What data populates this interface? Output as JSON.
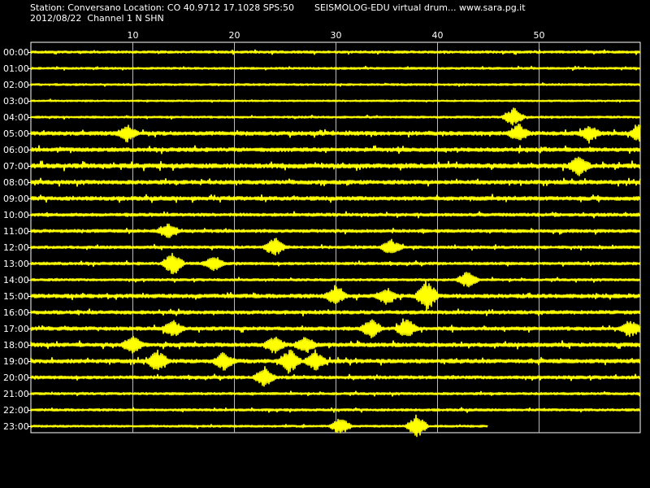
{
  "header": {
    "station_line": "Station: Conversano Location: CO 40.9712 17.1028 SPS:50",
    "title": "SEISMOLOG-EDU virtual drum... www.sara.pg.it",
    "date_line": "2012/08/22  Channel 1 N SHN"
  },
  "colors": {
    "background": "#000000",
    "trace": "#ffff00",
    "grid": "#ffffff",
    "text": "#ffffff"
  },
  "chart_data": {
    "type": "line",
    "title": "SEISMOLOG-EDU virtual drum... www.sara.pg.it",
    "xlabel": "",
    "ylabel": "",
    "x_ticks": [
      10,
      20,
      30,
      40,
      50
    ],
    "xlim": [
      0,
      60
    ],
    "x_unit_note": "minutes past the hour",
    "rows": [
      "00:00",
      "01:00",
      "02:00",
      "03:00",
      "04:00",
      "05:00",
      "06:00",
      "07:00",
      "08:00",
      "09:00",
      "10:00",
      "11:00",
      "12:00",
      "13:00",
      "14:00",
      "15:00",
      "16:00",
      "17:00",
      "18:00",
      "19:00",
      "20:00",
      "21:00",
      "22:00",
      "23:00"
    ],
    "last_row_end_minute": 45,
    "grid": true,
    "row_activity": [
      0.6,
      0.5,
      0.5,
      0.4,
      0.5,
      1.0,
      1.0,
      1.2,
      1.0,
      1.0,
      0.8,
      0.8,
      0.7,
      0.7,
      0.6,
      1.0,
      0.9,
      0.9,
      1.0,
      1.0,
      0.8,
      0.6,
      0.6,
      0.5
    ],
    "bursts": [
      {
        "row": "04:00",
        "minute": 47.5,
        "amplitude": 0.55
      },
      {
        "row": "05:00",
        "minute": 9.5,
        "amplitude": 0.45
      },
      {
        "row": "05:00",
        "minute": 48,
        "amplitude": 0.5
      },
      {
        "row": "05:00",
        "minute": 55,
        "amplitude": 0.45
      },
      {
        "row": "05:00",
        "minute": 60,
        "amplitude": 0.55
      },
      {
        "row": "07:00",
        "minute": 54,
        "amplitude": 0.55
      },
      {
        "row": "11:00",
        "minute": 13.5,
        "amplitude": 0.5
      },
      {
        "row": "12:00",
        "minute": 24,
        "amplitude": 0.55
      },
      {
        "row": "12:00",
        "minute": 35.5,
        "amplitude": 0.45
      },
      {
        "row": "13:00",
        "minute": 14,
        "amplitude": 0.7
      },
      {
        "row": "13:00",
        "minute": 18,
        "amplitude": 0.45
      },
      {
        "row": "14:00",
        "minute": 43,
        "amplitude": 0.5
      },
      {
        "row": "15:00",
        "minute": 30,
        "amplitude": 0.5
      },
      {
        "row": "15:00",
        "minute": 35,
        "amplitude": 0.45
      },
      {
        "row": "15:00",
        "minute": 39,
        "amplitude": 0.95
      },
      {
        "row": "17:00",
        "minute": 14,
        "amplitude": 0.5
      },
      {
        "row": "17:00",
        "minute": 33.5,
        "amplitude": 0.55
      },
      {
        "row": "17:00",
        "minute": 37,
        "amplitude": 0.55
      },
      {
        "row": "17:00",
        "minute": 59,
        "amplitude": 0.5
      },
      {
        "row": "18:00",
        "minute": 10,
        "amplitude": 0.5
      },
      {
        "row": "18:00",
        "minute": 24,
        "amplitude": 0.5
      },
      {
        "row": "18:00",
        "minute": 27,
        "amplitude": 0.45
      },
      {
        "row": "19:00",
        "minute": 12.5,
        "amplitude": 0.65
      },
      {
        "row": "19:00",
        "minute": 19,
        "amplitude": 0.5
      },
      {
        "row": "19:00",
        "minute": 25.5,
        "amplitude": 0.7
      },
      {
        "row": "19:00",
        "minute": 28,
        "amplitude": 0.55
      },
      {
        "row": "20:00",
        "minute": 23,
        "amplitude": 0.55
      },
      {
        "row": "23:00",
        "minute": 30.5,
        "amplitude": 0.5
      },
      {
        "row": "23:00",
        "minute": 38,
        "amplitude": 0.7
      }
    ]
  }
}
